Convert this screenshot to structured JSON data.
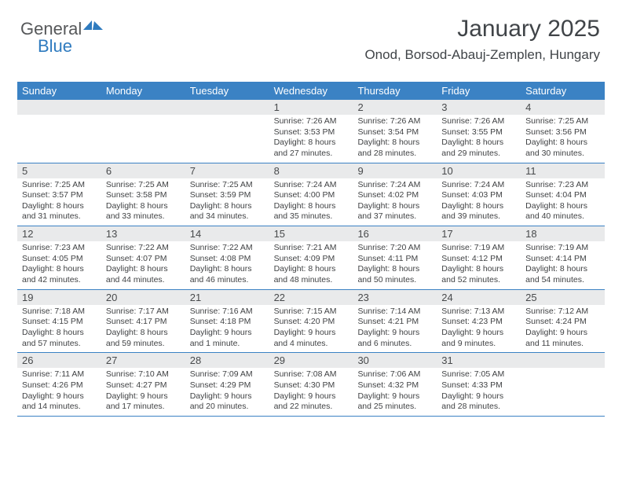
{
  "logo": {
    "part1": "General",
    "part2": "Blue"
  },
  "header": {
    "title": "January 2025",
    "location": "Onod, Borsod-Abauj-Zemplen, Hungary"
  },
  "colors": {
    "header_blue": "#3b82c4",
    "grey_band": "#e9eaeb",
    "text": "#404244",
    "logo_grey": "#56585a",
    "logo_blue": "#2f7bbf"
  },
  "dayNames": [
    "Sunday",
    "Monday",
    "Tuesday",
    "Wednesday",
    "Thursday",
    "Friday",
    "Saturday"
  ],
  "weeks": [
    [
      {
        "n": "",
        "sr": "",
        "ss": "",
        "dl": ""
      },
      {
        "n": "",
        "sr": "",
        "ss": "",
        "dl": ""
      },
      {
        "n": "",
        "sr": "",
        "ss": "",
        "dl": ""
      },
      {
        "n": "1",
        "sr": "7:26 AM",
        "ss": "3:53 PM",
        "dl": "8 hours and 27 minutes."
      },
      {
        "n": "2",
        "sr": "7:26 AM",
        "ss": "3:54 PM",
        "dl": "8 hours and 28 minutes."
      },
      {
        "n": "3",
        "sr": "7:26 AM",
        "ss": "3:55 PM",
        "dl": "8 hours and 29 minutes."
      },
      {
        "n": "4",
        "sr": "7:25 AM",
        "ss": "3:56 PM",
        "dl": "8 hours and 30 minutes."
      }
    ],
    [
      {
        "n": "5",
        "sr": "7:25 AM",
        "ss": "3:57 PM",
        "dl": "8 hours and 31 minutes."
      },
      {
        "n": "6",
        "sr": "7:25 AM",
        "ss": "3:58 PM",
        "dl": "8 hours and 33 minutes."
      },
      {
        "n": "7",
        "sr": "7:25 AM",
        "ss": "3:59 PM",
        "dl": "8 hours and 34 minutes."
      },
      {
        "n": "8",
        "sr": "7:24 AM",
        "ss": "4:00 PM",
        "dl": "8 hours and 35 minutes."
      },
      {
        "n": "9",
        "sr": "7:24 AM",
        "ss": "4:02 PM",
        "dl": "8 hours and 37 minutes."
      },
      {
        "n": "10",
        "sr": "7:24 AM",
        "ss": "4:03 PM",
        "dl": "8 hours and 39 minutes."
      },
      {
        "n": "11",
        "sr": "7:23 AM",
        "ss": "4:04 PM",
        "dl": "8 hours and 40 minutes."
      }
    ],
    [
      {
        "n": "12",
        "sr": "7:23 AM",
        "ss": "4:05 PM",
        "dl": "8 hours and 42 minutes."
      },
      {
        "n": "13",
        "sr": "7:22 AM",
        "ss": "4:07 PM",
        "dl": "8 hours and 44 minutes."
      },
      {
        "n": "14",
        "sr": "7:22 AM",
        "ss": "4:08 PM",
        "dl": "8 hours and 46 minutes."
      },
      {
        "n": "15",
        "sr": "7:21 AM",
        "ss": "4:09 PM",
        "dl": "8 hours and 48 minutes."
      },
      {
        "n": "16",
        "sr": "7:20 AM",
        "ss": "4:11 PM",
        "dl": "8 hours and 50 minutes."
      },
      {
        "n": "17",
        "sr": "7:19 AM",
        "ss": "4:12 PM",
        "dl": "8 hours and 52 minutes."
      },
      {
        "n": "18",
        "sr": "7:19 AM",
        "ss": "4:14 PM",
        "dl": "8 hours and 54 minutes."
      }
    ],
    [
      {
        "n": "19",
        "sr": "7:18 AM",
        "ss": "4:15 PM",
        "dl": "8 hours and 57 minutes."
      },
      {
        "n": "20",
        "sr": "7:17 AM",
        "ss": "4:17 PM",
        "dl": "8 hours and 59 minutes."
      },
      {
        "n": "21",
        "sr": "7:16 AM",
        "ss": "4:18 PM",
        "dl": "9 hours and 1 minute."
      },
      {
        "n": "22",
        "sr": "7:15 AM",
        "ss": "4:20 PM",
        "dl": "9 hours and 4 minutes."
      },
      {
        "n": "23",
        "sr": "7:14 AM",
        "ss": "4:21 PM",
        "dl": "9 hours and 6 minutes."
      },
      {
        "n": "24",
        "sr": "7:13 AM",
        "ss": "4:23 PM",
        "dl": "9 hours and 9 minutes."
      },
      {
        "n": "25",
        "sr": "7:12 AM",
        "ss": "4:24 PM",
        "dl": "9 hours and 11 minutes."
      }
    ],
    [
      {
        "n": "26",
        "sr": "7:11 AM",
        "ss": "4:26 PM",
        "dl": "9 hours and 14 minutes."
      },
      {
        "n": "27",
        "sr": "7:10 AM",
        "ss": "4:27 PM",
        "dl": "9 hours and 17 minutes."
      },
      {
        "n": "28",
        "sr": "7:09 AM",
        "ss": "4:29 PM",
        "dl": "9 hours and 20 minutes."
      },
      {
        "n": "29",
        "sr": "7:08 AM",
        "ss": "4:30 PM",
        "dl": "9 hours and 22 minutes."
      },
      {
        "n": "30",
        "sr": "7:06 AM",
        "ss": "4:32 PM",
        "dl": "9 hours and 25 minutes."
      },
      {
        "n": "31",
        "sr": "7:05 AM",
        "ss": "4:33 PM",
        "dl": "9 hours and 28 minutes."
      },
      {
        "n": "",
        "sr": "",
        "ss": "",
        "dl": ""
      }
    ]
  ],
  "labels": {
    "sunrise": "Sunrise:",
    "sunset": "Sunset:",
    "daylight": "Daylight:"
  }
}
